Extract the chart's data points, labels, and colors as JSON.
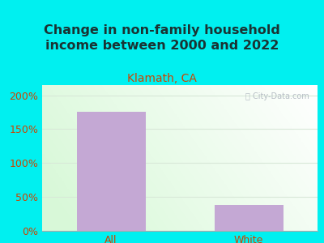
{
  "title": "Change in non-family household\nincome between 2000 and 2022",
  "subtitle": "Klamath, CA",
  "categories": [
    "All",
    "White"
  ],
  "values": [
    175,
    38
  ],
  "bar_color": "#c4a8d4",
  "title_color": "#1a3333",
  "subtitle_color": "#cc4400",
  "tick_label_color": "#cc4400",
  "background_outer": "#00f0f0",
  "background_inner_left": "#d0edcc",
  "background_inner_right": "#f0f8f0",
  "background_inner_top": "#f8fafa",
  "yticks": [
    0,
    50,
    100,
    150,
    200
  ],
  "ytick_labels": [
    "0%",
    "50%",
    "100%",
    "150%",
    "200%"
  ],
  "ylim": [
    0,
    215
  ],
  "title_fontsize": 11.5,
  "subtitle_fontsize": 10,
  "tick_fontsize": 9,
  "bar_width": 0.5,
  "watermark_text": "ⓘ City-Data.com",
  "watermark_color": "#b0b8c0",
  "grid_color": "#d8e8d8"
}
